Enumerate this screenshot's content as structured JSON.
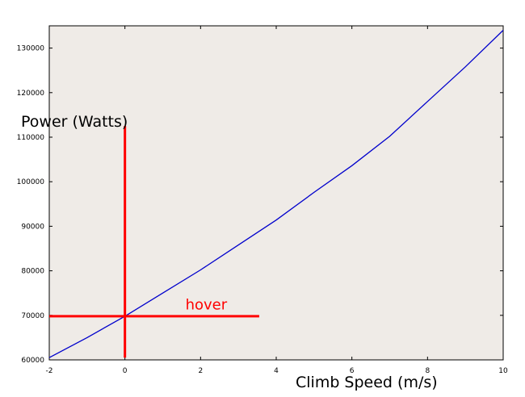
{
  "chart_data": {
    "type": "line",
    "title": "",
    "xlabel": "Climb Speed (m/s)",
    "ylabel": "Power (Watts)",
    "xlim": [
      -2,
      10
    ],
    "ylim": [
      60000,
      135000
    ],
    "x_ticks": [
      -2,
      0,
      2,
      4,
      6,
      8,
      10
    ],
    "y_ticks": [
      60000,
      70000,
      80000,
      90000,
      100000,
      110000,
      120000,
      130000
    ],
    "grid": false,
    "background_color": "#efebe7",
    "series": [
      {
        "color": "#0000cc",
        "x": [
          -2,
          -1,
          0,
          1,
          2,
          3,
          4,
          5,
          6,
          7,
          8,
          9,
          10
        ],
        "y": [
          60500,
          65000,
          69800,
          75000,
          80200,
          85800,
          91400,
          97600,
          103600,
          110200,
          118000,
          125800,
          134000
        ]
      }
    ],
    "annotations": [
      {
        "type": "vline",
        "color": "#ff0000",
        "x": 0,
        "y_range": [
          60500,
          112500
        ]
      },
      {
        "type": "hline",
        "color": "#ff0000",
        "y": 69800,
        "x_range": [
          -2,
          3.55
        ]
      },
      {
        "type": "text",
        "color": "#ff0000",
        "text": "hover",
        "x": 1.6,
        "y": 71300
      }
    ]
  }
}
